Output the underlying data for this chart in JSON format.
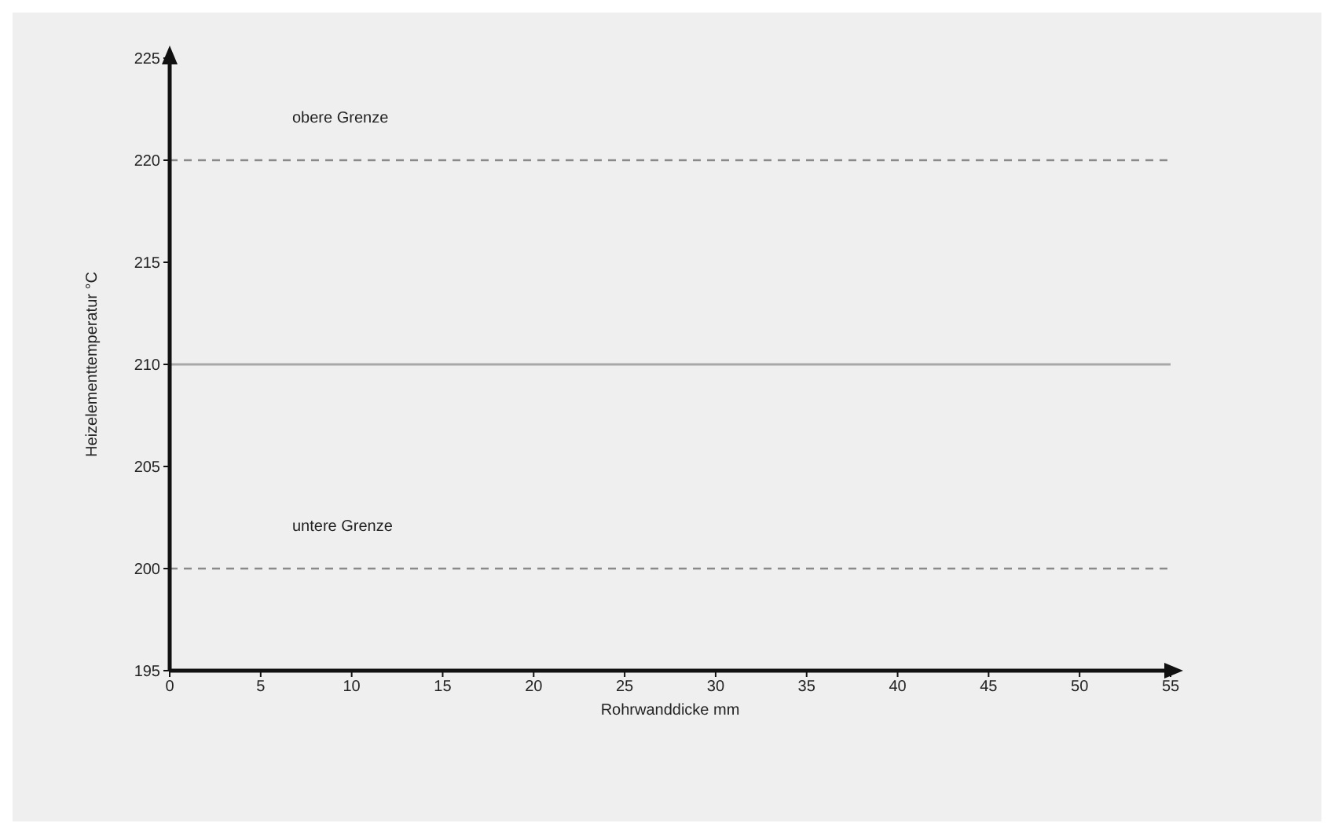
{
  "chart_data": {
    "type": "line",
    "xlabel": "Rohrwanddicke mm",
    "ylabel": "Heizelementtemperatur °C",
    "x": [
      0,
      55
    ],
    "series": [
      {
        "color": "#a8a8a8",
        "values": [
          210,
          210
        ]
      }
    ],
    "xlim": [
      0,
      55
    ],
    "xticks": [
      0,
      5,
      10,
      15,
      20,
      25,
      30,
      35,
      40,
      45,
      50,
      55
    ],
    "ylim": [
      195,
      225
    ],
    "yticks": [
      195,
      200,
      205,
      210,
      215,
      220,
      225
    ],
    "grid": false,
    "marker": "none",
    "line_style": "solid",
    "ref_lines": [
      {
        "axis": "y",
        "value": 220,
        "label": "obere Grenze",
        "color": "#8a8a8a",
        "line_style": "dashed"
      },
      {
        "axis": "y",
        "value": 200,
        "label": "untere Grenze",
        "color": "#8a8a8a",
        "line_style": "dashed"
      }
    ]
  }
}
